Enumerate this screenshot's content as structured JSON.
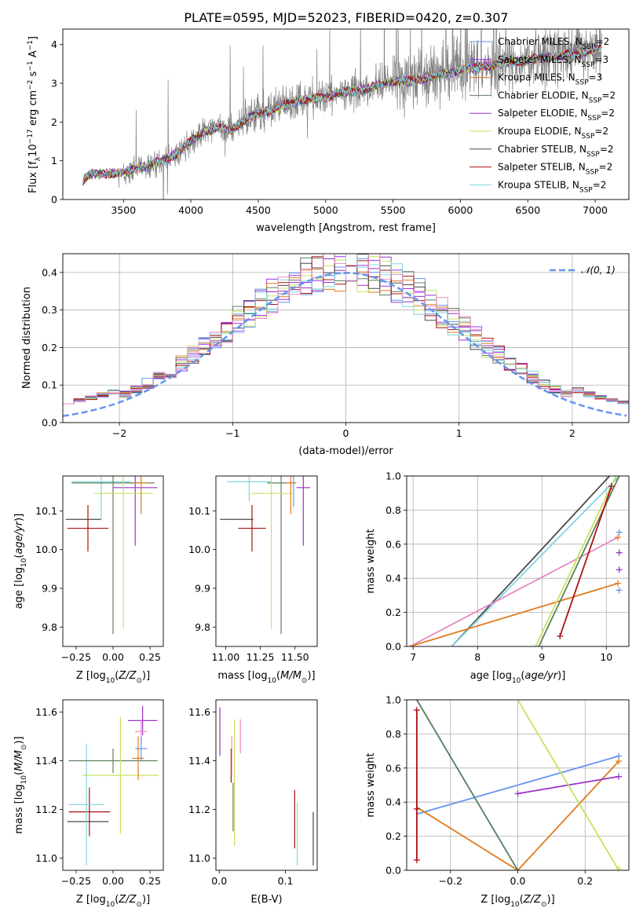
{
  "title": "PLATE=0595, MJD=52023, FIBERID=0420, z=0.307",
  "colors": {
    "chabrier_miles": "#6495ed",
    "salpeter_miles": "#9b30ff",
    "kroupa_miles": "#e07b20",
    "chabrier_elodie": "#5f7f5f",
    "salpeter_elodie": "#9932cc",
    "kroupa_elodie": "#c6e35e",
    "chabrier_stelib": "#4a4a4a",
    "salpeter_stelib": "#aa1111",
    "kroupa_stelib": "#7fd6de",
    "salpeter_miles_dot": "#e889c3",
    "data_gray": "#808080"
  },
  "chart_data": [
    {
      "type": "line",
      "panel": "spectrum",
      "xlabel": "wavelength [Angstrom, rest frame]",
      "ylabel": "Flux [f_λ 10^-17 erg cm^-2 s^-1 A^-1]",
      "xlim": [
        3050,
        7250
      ],
      "ylim": [
        0,
        4.4
      ],
      "xticks": [
        "3500",
        "4000",
        "4500",
        "5000",
        "5500",
        "6000",
        "6500",
        "7000"
      ],
      "yticks": [
        "0",
        "1",
        "2",
        "3",
        "4"
      ],
      "legend_position": "top-right",
      "legend": [
        {
          "name": "Chabrier MILES, N",
          "sub": "SSP",
          "suffix": "=2",
          "color": "#6495ed"
        },
        {
          "name": "Salpeter MILES, N",
          "sub": "SSP",
          "suffix": "=3",
          "color": "#9b30ff"
        },
        {
          "name": "Kroupa MILES, N",
          "sub": "SSP",
          "suffix": "=3",
          "color": "#e07b20"
        },
        {
          "name": "Chabrier ELODIE, N",
          "sub": "SSP",
          "suffix": "=2",
          "color": "#5f7f5f"
        },
        {
          "name": "Salpeter ELODIE, N",
          "sub": "SSP",
          "suffix": "=2",
          "color": "#9932cc"
        },
        {
          "name": "Kroupa ELODIE, N",
          "sub": "SSP",
          "suffix": "=2",
          "color": "#c6e35e"
        },
        {
          "name": "Chabrier STELIB, N",
          "sub": "SSP",
          "suffix": "=2",
          "color": "#4a4a4a"
        },
        {
          "name": "Salpeter STELIB, N",
          "sub": "SSP",
          "suffix": "=2",
          "color": "#aa1111"
        },
        {
          "name": "Kroupa STELIB, N",
          "sub": "SSP",
          "suffix": "=2",
          "color": "#7fd6de"
        }
      ],
      "model_continuum": {
        "x": [
          3200,
          3250,
          3500,
          3600,
          3700,
          3800,
          3900,
          4000,
          4100,
          4200,
          4300,
          4400,
          4500,
          4600,
          4700,
          4800,
          4900,
          5000,
          5100,
          5200,
          5300,
          5400,
          5500,
          5600,
          5700,
          5800,
          5900,
          6000,
          6100,
          6200,
          6300,
          6400,
          6500,
          6600,
          6700,
          6800,
          6900,
          7000,
          7050
        ],
        "y": [
          0.5,
          0.65,
          0.7,
          0.8,
          0.9,
          1.0,
          1.2,
          1.5,
          1.75,
          1.85,
          1.8,
          2.05,
          2.2,
          2.3,
          2.45,
          2.55,
          2.6,
          2.65,
          2.75,
          2.8,
          2.85,
          2.95,
          3.05,
          3.05,
          3.1,
          3.2,
          3.25,
          3.35,
          3.4,
          3.45,
          3.5,
          3.55,
          3.6,
          3.65,
          3.7,
          3.75,
          3.8,
          3.85,
          3.9
        ]
      }
    },
    {
      "type": "histogram",
      "panel": "residuals",
      "xlabel": "(data-model)/error",
      "ylabel": "Normed distribution",
      "xlim": [
        -2.5,
        2.5
      ],
      "ylim": [
        0,
        0.45
      ],
      "xticks": [
        "−2",
        "−1",
        "0",
        "1",
        "2"
      ],
      "yticks": [
        "0.0",
        "0.1",
        "0.2",
        "0.3",
        "0.4"
      ],
      "bin_width": 0.1,
      "legend": [
        {
          "name": "𝒩(0, 1)",
          "color": "#6495ed",
          "style": "dashed"
        }
      ],
      "grid": true
    },
    {
      "type": "errorbar",
      "panel": "age_vs_Z",
      "xlabel": "Z [log10(Z/Z⊙)]",
      "ylabel": "age [log10(age/yr)]",
      "xlim": [
        -0.34,
        0.34
      ],
      "ylim": [
        9.75,
        10.19
      ],
      "xticks": [
        "−0.25",
        "0.00",
        "0.25"
      ],
      "yticks": [
        "9.8",
        "9.9",
        "10.0",
        "10.1"
      ],
      "points": [
        {
          "x": -0.2,
          "xerr": 0.12,
          "y": 10.078,
          "yerr": 0.0,
          "color": "#4a4a4a"
        },
        {
          "x": -0.17,
          "xerr": 0.14,
          "y": 10.055,
          "yerr": 0.06,
          "color": "#aa1111"
        },
        {
          "x": -0.08,
          "xerr": 0.2,
          "y": 10.175,
          "yerr": 0.1,
          "color": "#7fd6de"
        },
        {
          "x": 0.0,
          "xerr": 0.28,
          "y": 10.172,
          "yerr": 0.39,
          "color": "#5f7f5f"
        },
        {
          "x": 0.15,
          "xerr": 0.15,
          "y": 10.16,
          "yerr": 0.15,
          "color": "#9932cc"
        },
        {
          "x": 0.07,
          "xerr": 0.2,
          "y": 10.145,
          "yerr": 0.35,
          "color": "#c6e35e"
        },
        {
          "x": 0.19,
          "xerr": 0.05,
          "y": 10.172,
          "yerr": 0.08,
          "color": "#e07b20"
        }
      ]
    },
    {
      "type": "errorbar",
      "panel": "age_vs_mass",
      "xlabel": "mass [log10(M/M⊙)]",
      "ylabel": "",
      "xlim": [
        10.93,
        11.66
      ],
      "ylim": [
        9.75,
        10.19
      ],
      "xticks": [
        "11.00",
        "11.25",
        "11.50"
      ],
      "yticks": [
        "9.8",
        "9.9",
        "10.0",
        "10.1"
      ],
      "points": [
        {
          "x": 11.08,
          "xerr": 0.12,
          "y": 10.078,
          "yerr": 0.0,
          "color": "#4a4a4a"
        },
        {
          "x": 11.19,
          "xerr": 0.1,
          "y": 10.055,
          "yerr": 0.06,
          "color": "#aa1111"
        },
        {
          "x": 11.17,
          "xerr": 0.16,
          "y": 10.175,
          "yerr": 0.05,
          "color": "#7fd6de"
        },
        {
          "x": 11.4,
          "xerr": 0.1,
          "y": 10.172,
          "yerr": 0.39,
          "color": "#5f7f5f"
        },
        {
          "x": 11.33,
          "xerr": 0.15,
          "y": 10.145,
          "yerr": 0.35,
          "color": "#c6e35e"
        },
        {
          "x": 11.56,
          "xerr": 0.05,
          "y": 10.16,
          "yerr": 0.15,
          "color": "#9932cc"
        },
        {
          "x": 11.47,
          "xerr": 0.04,
          "y": 10.172,
          "yerr": 0.08,
          "color": "#e07b20"
        },
        {
          "x": 11.49,
          "xerr": 0.0,
          "y": 10.17,
          "yerr": 0.06,
          "color": "#6495ed"
        }
      ]
    },
    {
      "type": "line",
      "panel": "cumulative_mass_vs_age",
      "xlabel": "age [log10(age/yr)]",
      "ylabel": "mass weight",
      "xlim": [
        6.9,
        10.35
      ],
      "ylim": [
        0,
        1
      ],
      "xticks": [
        "7",
        "8",
        "9",
        "10"
      ],
      "yticks": [
        "0.0",
        "0.2",
        "0.4",
        "0.6",
        "0.8",
        "1.0"
      ],
      "grid": true,
      "series": [
        {
          "color": "#4a4a4a",
          "x": [
            7.6,
            10.05
          ],
          "y": [
            0.0,
            1.0
          ]
        },
        {
          "color": "#7fd6de",
          "x": [
            7.6,
            10.2
          ],
          "y": [
            0.0,
            1.0
          ]
        },
        {
          "color": "#e889c3",
          "x": [
            6.95,
            10.18
          ],
          "y": [
            0.0,
            0.64
          ]
        },
        {
          "color": "#e07b20",
          "x": [
            6.95,
            10.18
          ],
          "y": [
            0.0,
            0.37
          ]
        },
        {
          "color": "#c6e35e",
          "x": [
            8.9,
            10.15
          ],
          "y": [
            0.0,
            1.0
          ]
        },
        {
          "color": "#5f7f5f",
          "x": [
            8.95,
            10.2
          ],
          "y": [
            0.0,
            1.0
          ]
        },
        {
          "color": "#aa1111",
          "x": [
            9.28,
            10.08
          ],
          "y": [
            0.06,
            0.94
          ]
        }
      ],
      "end_markers": [
        {
          "x": 10.2,
          "y": 0.67,
          "color": "#6495ed"
        },
        {
          "x": 10.2,
          "y": 0.33,
          "color": "#6495ed"
        },
        {
          "x": 10.2,
          "y": 0.55,
          "color": "#9932cc"
        },
        {
          "x": 10.2,
          "y": 0.45,
          "color": "#9932cc"
        },
        {
          "x": 10.18,
          "y": 0.64,
          "color": "#e07b20"
        },
        {
          "x": 10.18,
          "y": 0.37,
          "color": "#e07b20"
        },
        {
          "x": 9.28,
          "y": 0.06,
          "color": "#aa1111"
        },
        {
          "x": 10.08,
          "y": 0.94,
          "color": "#aa1111"
        }
      ]
    },
    {
      "type": "errorbar",
      "panel": "mass_vs_Z",
      "xlabel": "Z [log10(Z/Z⊙)]",
      "ylabel": "mass [log10(M/M⊙)]",
      "xlim": [
        -0.34,
        0.34
      ],
      "ylim": [
        10.95,
        11.65
      ],
      "xticks": [
        "−0.25",
        "0.00",
        "0.25"
      ],
      "yticks": [
        "11.0",
        "11.2",
        "11.4",
        "11.6"
      ],
      "points": [
        {
          "x": -0.17,
          "xerr": 0.14,
          "y": 11.15,
          "yerr": 0.0,
          "color": "#4a4a4a"
        },
        {
          "x": -0.16,
          "xerr": 0.14,
          "y": 11.19,
          "yerr": 0.1,
          "color": "#aa1111"
        },
        {
          "x": -0.18,
          "xerr": 0.12,
          "y": 11.22,
          "yerr": 0.25,
          "color": "#7fd6de"
        },
        {
          "x": 0.0,
          "xerr": 0.3,
          "y": 11.4,
          "yerr": 0.05,
          "color": "#5f7f5f"
        },
        {
          "x": 0.05,
          "xerr": 0.26,
          "y": 11.34,
          "yerr": 0.24,
          "color": "#c6e35e"
        },
        {
          "x": 0.2,
          "xerr": 0.1,
          "y": 11.565,
          "yerr": 0.06,
          "color": "#9932cc"
        },
        {
          "x": 0.19,
          "xerr": 0.04,
          "y": 11.52,
          "yerr": 0.05,
          "color": "#e889c3"
        },
        {
          "x": 0.19,
          "xerr": 0.04,
          "y": 11.45,
          "yerr": 0.05,
          "color": "#6495ed"
        },
        {
          "x": 0.17,
          "xerr": 0.04,
          "y": 11.41,
          "yerr": 0.09,
          "color": "#e07b20"
        }
      ]
    },
    {
      "type": "errorbar",
      "panel": "mass_vs_EBV",
      "xlabel": "E(B-V)",
      "ylabel": "",
      "xlim": [
        -0.005,
        0.148
      ],
      "ylim": [
        10.95,
        11.65
      ],
      "xticks": [
        "0.0",
        "0.1"
      ],
      "yticks": [
        "11.0",
        "11.2",
        "11.4",
        "11.6"
      ],
      "points": [
        {
          "x": 0.001,
          "y": 11.52,
          "yerr": 0.1,
          "color": "#9932cc"
        },
        {
          "x": 0.018,
          "y": 11.38,
          "yerr": 0.07,
          "color": "#aa1111"
        },
        {
          "x": 0.019,
          "y": 11.42,
          "yerr": 0.08,
          "color": "#e889c3"
        },
        {
          "x": 0.021,
          "y": 11.21,
          "yerr": 0.1,
          "color": "#5f7f5f"
        },
        {
          "x": 0.023,
          "y": 11.31,
          "yerr": 0.26,
          "color": "#c6e35e"
        },
        {
          "x": 0.032,
          "y": 11.5,
          "yerr": 0.07,
          "color": "#e889c3"
        },
        {
          "x": 0.114,
          "y": 11.16,
          "yerr": 0.12,
          "color": "#aa1111"
        },
        {
          "x": 0.118,
          "y": 11.1,
          "yerr": 0.13,
          "color": "#7fd6de"
        },
        {
          "x": 0.142,
          "y": 11.08,
          "yerr": 0.11,
          "color": "#4a4a4a"
        }
      ]
    },
    {
      "type": "line",
      "panel": "cumulative_mass_vs_Z",
      "xlabel": "Z [log10(Z/Z⊙)]",
      "ylabel": "mass weight",
      "xlim": [
        -0.33,
        0.33
      ],
      "ylim": [
        0,
        1
      ],
      "xticks": [
        "−0.2",
        "0.0",
        "0.2"
      ],
      "yticks": [
        "0.0",
        "0.2",
        "0.4",
        "0.6",
        "0.8",
        "1.0"
      ],
      "grid": true,
      "series": [
        {
          "color": "#6495ed",
          "x": [
            -0.3,
            0.3
          ],
          "y": [
            0.33,
            0.67
          ]
        },
        {
          "color": "#e07b20",
          "x": [
            -0.3,
            0.0,
            0.3
          ],
          "y": [
            0.37,
            0.0,
            0.64
          ]
        },
        {
          "color": "#9932cc",
          "x": [
            0.0,
            0.3
          ],
          "y": [
            0.45,
            0.55
          ]
        },
        {
          "color": "#7fd6de",
          "x": [
            -0.3,
            0.0
          ],
          "y": [
            1.0,
            0.0
          ]
        },
        {
          "color": "#5f7f5f",
          "x": [
            -0.3,
            0.0
          ],
          "y": [
            1.0,
            0.0
          ]
        },
        {
          "color": "#c6e35e",
          "x": [
            0.0,
            0.3
          ],
          "y": [
            1.0,
            0.0
          ]
        },
        {
          "color": "#aa1111",
          "x": [
            -0.3,
            -0.3
          ],
          "y": [
            0.06,
            0.94
          ]
        }
      ],
      "end_markers": [
        {
          "x": 0.3,
          "y": 0.67,
          "color": "#6495ed"
        },
        {
          "x": 0.3,
          "y": 0.64,
          "color": "#e07b20"
        },
        {
          "x": 0.3,
          "y": 0.55,
          "color": "#9932cc"
        },
        {
          "x": 0.0,
          "y": 0.45,
          "color": "#9932cc"
        },
        {
          "x": -0.3,
          "y": 0.94,
          "color": "#aa1111"
        },
        {
          "x": -0.3,
          "y": 0.36,
          "color": "#aa1111"
        },
        {
          "x": -0.3,
          "y": 0.06,
          "color": "#aa1111"
        },
        {
          "x": 0.3,
          "y": 0.01,
          "color": "#c6e35e"
        }
      ]
    }
  ]
}
